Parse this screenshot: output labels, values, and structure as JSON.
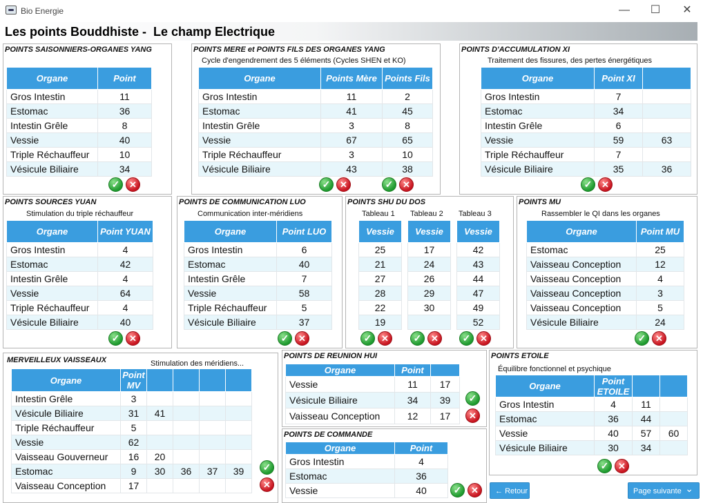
{
  "window": {
    "app_title": "Bio Energie",
    "minimize": "—",
    "maximize": "☐",
    "close": "✕"
  },
  "page_title": "Les points Bouddhiste -  Le champ Electrique",
  "p1": {
    "title": "POINTS SAISONNIERS-ORGANES YANG",
    "headers": [
      "Organe",
      "Point"
    ],
    "rows": [
      [
        "Gros Intestin",
        "11"
      ],
      [
        "Estomac",
        "36"
      ],
      [
        "Intestin Grêle",
        "8"
      ],
      [
        "Vessie",
        "40"
      ],
      [
        "Triple Réchauffeur",
        "10"
      ],
      [
        "Vésicule Biliaire",
        "34"
      ]
    ]
  },
  "p2": {
    "title": "POINTS MERE et POINTS FILS DES ORGANES YANG",
    "subtitle": "Cycle d'engendrement des 5 éléments (Cycles SHEN et KO)",
    "headers": [
      "Organe",
      "Points Mère",
      "Points Fils"
    ],
    "rows": [
      [
        "Gros Intestin",
        "11",
        "2"
      ],
      [
        "Estomac",
        "41",
        "45"
      ],
      [
        "Intestin Grêle",
        "3",
        "8"
      ],
      [
        "Vessie",
        "67",
        "65"
      ],
      [
        "Triple Réchauffeur",
        "3",
        "10"
      ],
      [
        "Vésicule Biliaire",
        "43",
        "38"
      ]
    ]
  },
  "p3": {
    "title": "POINTS D'ACCUMULATION XI",
    "subtitle": "Traitement des fissures, des pertes énergétiques",
    "headers": [
      "Organe",
      "Point XI",
      ""
    ],
    "rows": [
      [
        "Gros Intestin",
        "7",
        ""
      ],
      [
        "Estomac",
        "34",
        ""
      ],
      [
        "Intestin Grêle",
        "6",
        ""
      ],
      [
        "Vessie",
        "59",
        "63"
      ],
      [
        "Triple Réchauffeur",
        "7",
        ""
      ],
      [
        "Vésicule Biliaire",
        "35",
        "36"
      ]
    ]
  },
  "p4": {
    "title": "POINTS SOURCES YUAN",
    "subtitle": "Stimulation du triple réchauffeur",
    "headers": [
      "Organe",
      "Point YUAN"
    ],
    "rows": [
      [
        "Gros Intestin",
        "4"
      ],
      [
        "Estomac",
        "42"
      ],
      [
        "Intestin Grêle",
        "4"
      ],
      [
        "Vessie",
        "64"
      ],
      [
        "Triple Réchauffeur",
        "4"
      ],
      [
        "Vésicule Biliaire",
        "40"
      ]
    ]
  },
  "p5": {
    "title": "POINTS DE COMMUNICATION LUO",
    "subtitle": "Communication inter-méridiens",
    "headers": [
      "Organe",
      "Point LUO"
    ],
    "rows": [
      [
        "Gros Intestin",
        "6"
      ],
      [
        "Estomac",
        "40"
      ],
      [
        "Intestin Grêle",
        "7"
      ],
      [
        "Vessie",
        "58"
      ],
      [
        "Triple Réchauffeur",
        "5"
      ],
      [
        "Vésicule Biliaire",
        "37"
      ]
    ]
  },
  "p6": {
    "title": "POINTS SHU DU DOS",
    "tab_labels": [
      "Tableau 1",
      "Tableau 2",
      "Tableau 3"
    ],
    "header": "Vessie",
    "tables": [
      [
        "25",
        "21",
        "27",
        "28",
        "22",
        "19"
      ],
      [
        "17",
        "24",
        "26",
        "29",
        "30",
        ""
      ],
      [
        "42",
        "43",
        "44",
        "47",
        "49",
        "52"
      ]
    ]
  },
  "p7": {
    "title": "POINTS MU",
    "subtitle": "Rassembler le QI dans les organes",
    "headers": [
      "Organe",
      "Point MU"
    ],
    "rows": [
      [
        "Estomac",
        "25"
      ],
      [
        "Vaisseau Conception",
        "12"
      ],
      [
        "Vaisseau Conception",
        "4"
      ],
      [
        "Vaisseau Conception",
        "3"
      ],
      [
        "Vaisseau Conception",
        "5"
      ],
      [
        "Vésicule Biliaire",
        "24"
      ]
    ]
  },
  "p8": {
    "title": "MERVEILLEUX VAISSEAUX",
    "subtitle": "Stimulation des méridiens...",
    "headers": [
      "Organe",
      "Point MV",
      "",
      "",
      "",
      ""
    ],
    "rows": [
      [
        "Intestin Grêle",
        "3",
        "",
        "",
        "",
        ""
      ],
      [
        "Vésicule Biliaire",
        "31",
        "41",
        "",
        "",
        ""
      ],
      [
        "Triple Réchauffeur",
        "5",
        "",
        "",
        "",
        ""
      ],
      [
        "Vessie",
        "62",
        "",
        "",
        "",
        ""
      ],
      [
        "Vaisseau Gouverneur",
        "16",
        "20",
        "",
        "",
        ""
      ],
      [
        "Estomac",
        "9",
        "30",
        "36",
        "37",
        "39"
      ],
      [
        "Vaisseau Conception",
        "17",
        "",
        "",
        "",
        ""
      ]
    ]
  },
  "p9": {
    "title": "POINTS DE REUNION HUI",
    "headers": [
      "Organe",
      "Point",
      ""
    ],
    "rows": [
      [
        "Vessie",
        "11",
        "17"
      ],
      [
        "Vésicule Biliaire",
        "34",
        "39"
      ],
      [
        "Vaisseau Conception",
        "12",
        "17"
      ]
    ]
  },
  "p10": {
    "title": "POINTS DE COMMANDE",
    "headers": [
      "Organe",
      "Point"
    ],
    "rows": [
      [
        "Gros Intestin",
        "4"
      ],
      [
        "Estomac",
        "36"
      ],
      [
        "Vessie",
        "40"
      ]
    ]
  },
  "p11": {
    "title": "POINTS ETOILE",
    "subtitle": "Équilibre fonctionnel et psychique",
    "headers": [
      "Organe",
      "Point ETOILE",
      "",
      ""
    ],
    "rows": [
      [
        "Gros Intestin",
        "4",
        "11",
        ""
      ],
      [
        "Estomac",
        "36",
        "44",
        ""
      ],
      [
        "Vessie",
        "40",
        "57",
        "60"
      ],
      [
        "Vésicule Biliaire",
        "30",
        "34",
        ""
      ]
    ]
  },
  "nav": {
    "back_label": "Retour",
    "next_label": "Page suivante",
    "back_arrow": "←",
    "next_chevron": "⌄"
  },
  "icons": {
    "validate": "✓",
    "cancel": "✕"
  }
}
